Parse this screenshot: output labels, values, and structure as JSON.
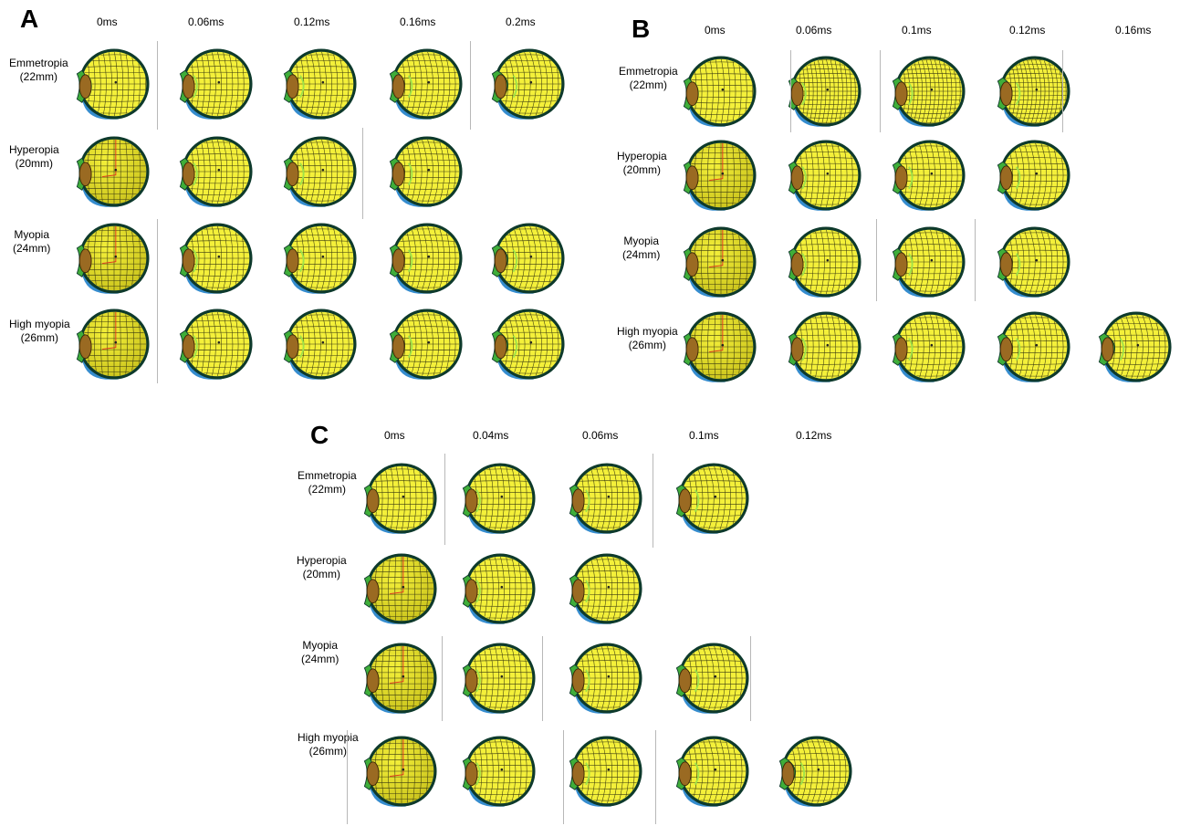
{
  "panels": [
    {
      "letter": "A",
      "times": [
        "0ms",
        "0.06ms",
        "0.12ms",
        "0.16ms",
        "0.2ms"
      ],
      "rows": [
        {
          "name": "Emmetropia",
          "size": "(22mm)",
          "frames": 5
        },
        {
          "name": "Hyperopia",
          "size": "(20mm)",
          "frames": 4
        },
        {
          "name": "Myopia",
          "size": "(24mm)",
          "frames": 5
        },
        {
          "name": "High myopia",
          "size": "(26mm)",
          "frames": 5
        }
      ]
    },
    {
      "letter": "B",
      "times": [
        "0ms",
        "0.06ms",
        "0.1ms",
        "0.12ms",
        "0.16ms"
      ],
      "rows": [
        {
          "name": "Emmetropia",
          "size": "(22mm)",
          "frames": 4
        },
        {
          "name": "Hyperopia",
          "size": "(20mm)",
          "frames": 4
        },
        {
          "name": "Myopia",
          "size": "(24mm)",
          "frames": 4
        },
        {
          "name": "High myopia",
          "size": "(26mm)",
          "frames": 5
        }
      ]
    },
    {
      "letter": "C",
      "times": [
        "0ms",
        "0.04ms",
        "0.06ms",
        "0.1ms",
        "0.12ms"
      ],
      "rows": [
        {
          "name": "Emmetropia",
          "size": "(22mm)",
          "frames": 4
        },
        {
          "name": "Hyperopia",
          "size": "(20mm)",
          "frames": 3
        },
        {
          "name": "Myopia",
          "size": "(24mm)",
          "frames": 4
        },
        {
          "name": "High myopia",
          "size": "(26mm)",
          "frames": 5
        }
      ]
    }
  ],
  "colors": {
    "globe_fill": "#f4f03a",
    "globe_shade": "#c9c21c",
    "mesh_line": "#3a3a10",
    "sclera_outline": "#0e3a2c",
    "muscle_green": "#3fae3a",
    "muscle_light": "#9fe34a",
    "orbit_blue": "#1f7fc9",
    "lens_brown": "#9a6a22",
    "axis_red": "#e0301e"
  }
}
